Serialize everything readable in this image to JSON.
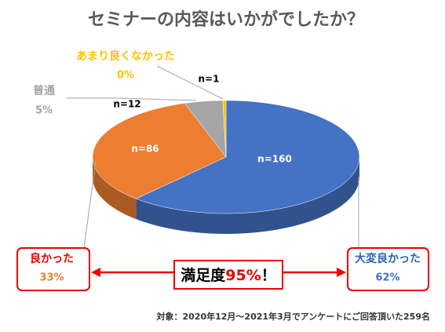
{
  "chart_data": {
    "type": "pie3d",
    "title": "セミナーの内容はいかがでしたか？",
    "categories": [
      "大変良かった",
      "良かった",
      "普通",
      "あまり良くなかった"
    ],
    "values": [
      62,
      33,
      5,
      0
    ],
    "value_labels": [
      "62%",
      "33%",
      "5%",
      "0%"
    ],
    "counts": [
      160,
      86,
      12,
      1
    ],
    "count_labels": [
      "n=160",
      "n=86",
      "n=12",
      "n=1"
    ],
    "colors": [
      "#4472c4",
      "#ed7d31",
      "#a5a5a5",
      "#ffc000"
    ],
    "satisfaction": {
      "label": "満足度",
      "highlight": "95%",
      "suffix": "！"
    },
    "footnote": "対象：2020年12月～2021年3月でアンケートにご回答頂いた259名"
  }
}
